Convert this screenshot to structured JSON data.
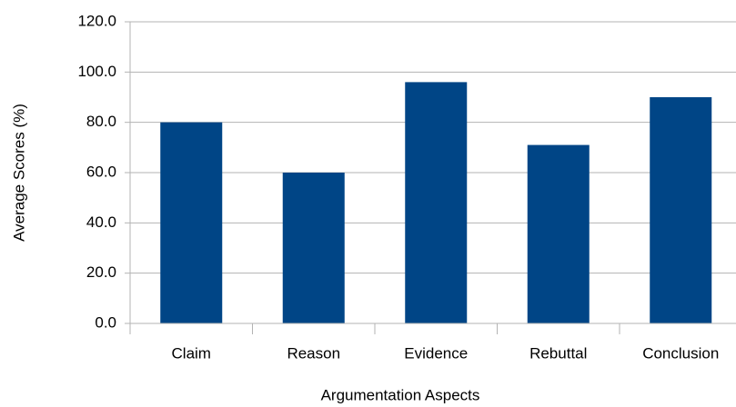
{
  "chart_data": {
    "type": "bar",
    "categories": [
      "Claim",
      "Reason",
      "Evidence",
      "Rebuttal",
      "Conclusion"
    ],
    "values": [
      80,
      60,
      96,
      71,
      90
    ],
    "color": "#004586",
    "ylim": [
      0,
      120
    ],
    "yticks": [
      {
        "value": 0,
        "label": "0.0"
      },
      {
        "value": 20,
        "label": "20.0"
      },
      {
        "value": 40,
        "label": "40.0"
      },
      {
        "value": 60,
        "label": "60.0"
      },
      {
        "value": 80,
        "label": "80.0"
      },
      {
        "value": 100,
        "label": "100.0"
      },
      {
        "value": 120,
        "label": "120.0"
      }
    ],
    "grid": true,
    "xlabel": "Argumentation Aspects",
    "ylabel": "Average Scores (%)"
  }
}
